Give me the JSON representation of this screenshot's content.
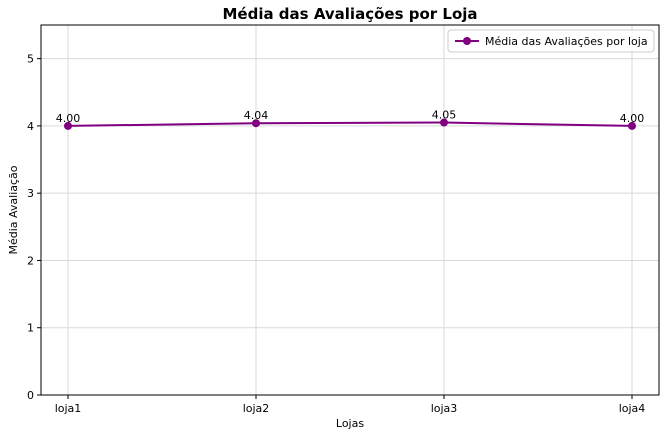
{
  "chart_data": {
    "type": "line",
    "title": "Média das Avaliações por Loja",
    "xlabel": "Lojas",
    "ylabel": "Média Avaliação",
    "categories": [
      "loja1",
      "loja2",
      "loja3",
      "loja4"
    ],
    "series": [
      {
        "name": "Média das Avaliações por loja",
        "values": [
          4.0,
          4.04,
          4.05,
          4.0
        ],
        "labels": [
          "4.00",
          "4.04",
          "4.05",
          "4.00"
        ],
        "color": "#800080",
        "marker": "circle"
      }
    ],
    "ylim": [
      0,
      5.5
    ],
    "yticks": [
      0,
      1,
      2,
      3,
      4,
      5
    ],
    "ytick_labels": [
      "0",
      "1",
      "2",
      "3",
      "4",
      "5"
    ],
    "grid": true,
    "grid_color": "#d9d9d9",
    "legend_position": "top-right"
  }
}
